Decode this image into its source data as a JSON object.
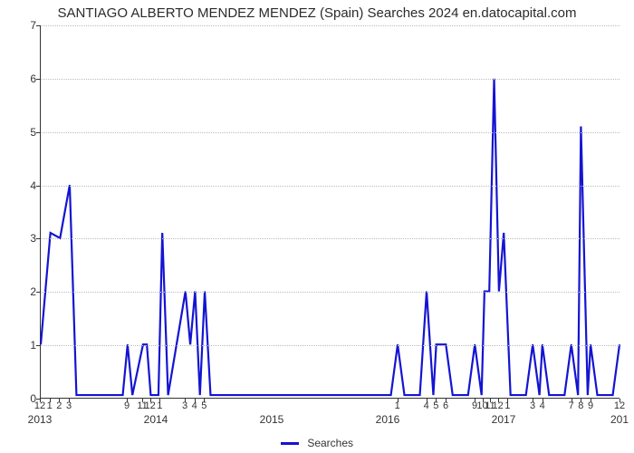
{
  "chart": {
    "type": "line",
    "title": "SANTIAGO ALBERTO MENDEZ MENDEZ (Spain) Searches 2024 en.datocapital.com",
    "title_fontsize": 15,
    "title_color": "#2b2b2b",
    "background_color": "#ffffff",
    "plot_border_color": "#333333",
    "grid_color": "#bcbcbc",
    "line_color": "#1414d2",
    "line_width": 2.2,
    "ylim": [
      0,
      7
    ],
    "yticks": [
      0,
      1,
      2,
      3,
      4,
      5,
      6,
      7
    ],
    "y_label_fontsize": 12,
    "x_minor_fontsize": 11,
    "x_year_fontsize": 12,
    "x_total_months": 60,
    "x_year_labels": [
      {
        "label": "2013",
        "month": 0
      },
      {
        "label": "2014",
        "month": 12
      },
      {
        "label": "2015",
        "month": 24
      },
      {
        "label": "2016",
        "month": 36
      },
      {
        "label": "2017",
        "month": 48
      },
      {
        "label": "201",
        "month": 60
      }
    ],
    "x_minor_labels": [
      {
        "label": "12",
        "month": 0
      },
      {
        "label": "1",
        "month": 1
      },
      {
        "label": "2",
        "month": 2
      },
      {
        "label": "3",
        "month": 3
      },
      {
        "label": "9",
        "month": 9
      },
      {
        "label": "11",
        "month": 10.6
      },
      {
        "label": "12",
        "month": 11.4
      },
      {
        "label": "1",
        "month": 12.4
      },
      {
        "label": "3",
        "month": 15
      },
      {
        "label": "4",
        "month": 16
      },
      {
        "label": "5",
        "month": 17
      },
      {
        "label": "1",
        "month": 37
      },
      {
        "label": "4",
        "month": 40
      },
      {
        "label": "5",
        "month": 41
      },
      {
        "label": "6",
        "month": 42
      },
      {
        "label": "9",
        "month": 45
      },
      {
        "label": "10",
        "month": 45.8
      },
      {
        "label": "11",
        "month": 46.6
      },
      {
        "label": "12",
        "month": 47.4
      },
      {
        "label": "1",
        "month": 48.4
      },
      {
        "label": "3",
        "month": 51
      },
      {
        "label": "4",
        "month": 52
      },
      {
        "label": "7",
        "month": 55
      },
      {
        "label": "8",
        "month": 56
      },
      {
        "label": "9",
        "month": 57
      },
      {
        "label": "12",
        "month": 60
      }
    ],
    "series": [
      {
        "x": 0,
        "y": 1.0
      },
      {
        "x": 1,
        "y": 3.1
      },
      {
        "x": 2,
        "y": 3.0
      },
      {
        "x": 3,
        "y": 4.0
      },
      {
        "x": 3.7,
        "y": 0.05
      },
      {
        "x": 8.5,
        "y": 0.05
      },
      {
        "x": 9,
        "y": 1.0
      },
      {
        "x": 9.5,
        "y": 0.05
      },
      {
        "x": 10.6,
        "y": 1.0
      },
      {
        "x": 11,
        "y": 1.0
      },
      {
        "x": 11.4,
        "y": 0.05
      },
      {
        "x": 12.2,
        "y": 0.05
      },
      {
        "x": 12.6,
        "y": 3.1
      },
      {
        "x": 13.2,
        "y": 0.05
      },
      {
        "x": 15,
        "y": 2.0
      },
      {
        "x": 15.5,
        "y": 1.0
      },
      {
        "x": 16,
        "y": 2.0
      },
      {
        "x": 16.5,
        "y": 0.05
      },
      {
        "x": 17,
        "y": 2.0
      },
      {
        "x": 17.6,
        "y": 0.05
      },
      {
        "x": 36.3,
        "y": 0.05
      },
      {
        "x": 37,
        "y": 1.0
      },
      {
        "x": 37.7,
        "y": 0.05
      },
      {
        "x": 39.3,
        "y": 0.05
      },
      {
        "x": 40,
        "y": 2.0
      },
      {
        "x": 40.7,
        "y": 0.05
      },
      {
        "x": 41,
        "y": 1.0
      },
      {
        "x": 42,
        "y": 1.0
      },
      {
        "x": 42.7,
        "y": 0.05
      },
      {
        "x": 44.3,
        "y": 0.05
      },
      {
        "x": 45,
        "y": 1.0
      },
      {
        "x": 45.7,
        "y": 0.05
      },
      {
        "x": 46,
        "y": 2.0
      },
      {
        "x": 46.5,
        "y": 2.0
      },
      {
        "x": 47,
        "y": 6.0
      },
      {
        "x": 47.5,
        "y": 2.0
      },
      {
        "x": 48,
        "y": 3.1
      },
      {
        "x": 48.7,
        "y": 0.05
      },
      {
        "x": 50.3,
        "y": 0.05
      },
      {
        "x": 51,
        "y": 1.0
      },
      {
        "x": 51.7,
        "y": 0.05
      },
      {
        "x": 52,
        "y": 1.0
      },
      {
        "x": 52.7,
        "y": 0.05
      },
      {
        "x": 54.3,
        "y": 0.05
      },
      {
        "x": 55,
        "y": 1.0
      },
      {
        "x": 55.7,
        "y": 0.05
      },
      {
        "x": 56,
        "y": 5.1
      },
      {
        "x": 56.7,
        "y": 0.05
      },
      {
        "x": 57,
        "y": 1.0
      },
      {
        "x": 57.7,
        "y": 0.05
      },
      {
        "x": 59.3,
        "y": 0.05
      },
      {
        "x": 60,
        "y": 1.0
      }
    ],
    "legend": {
      "label": "Searches",
      "swatch_color": "#1414d2"
    }
  }
}
